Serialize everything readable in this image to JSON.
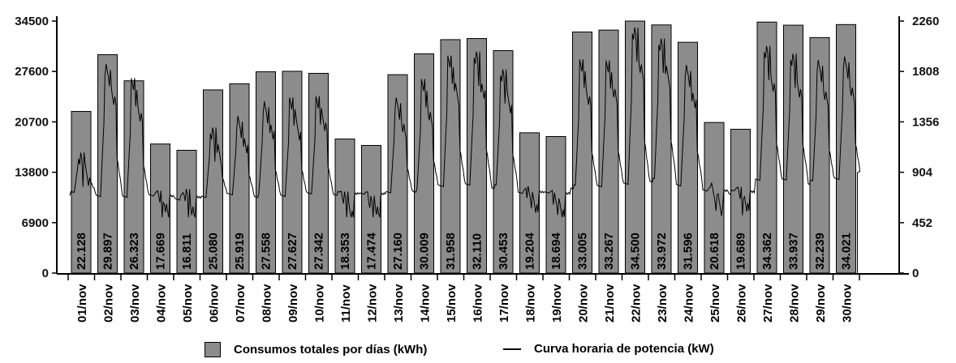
{
  "chart_data": {
    "type": "bar",
    "categories": [
      "01/nov",
      "02/nov",
      "03/nov",
      "04/nov",
      "05/nov",
      "06/nov",
      "07/nov",
      "08/nov",
      "09/nov",
      "10/nov",
      "11/nov",
      "12/nov",
      "13/nov",
      "14/nov",
      "15/nov",
      "16/nov",
      "17/nov",
      "18/nov",
      "19/nov",
      "20/nov",
      "21/nov",
      "22/nov",
      "23/nov",
      "24/nov",
      "25/nov",
      "26/nov",
      "27/nov",
      "28/nov",
      "29/nov",
      "30/nov"
    ],
    "series": [
      {
        "name": "Consumos totales por días (kWh)",
        "axis": "left",
        "kind": "bar",
        "color": "#8c8c8c",
        "values": [
          22128,
          29897,
          26323,
          17669,
          16811,
          25080,
          25919,
          27558,
          27627,
          27342,
          18353,
          17474,
          27160,
          30009,
          31958,
          32110,
          30453,
          19204,
          18694,
          33005,
          33267,
          34500,
          33972,
          31596,
          20618,
          19689,
          34362,
          33937,
          32239,
          34021
        ],
        "value_labels": [
          "22.128",
          "29.897",
          "26.323",
          "17.669",
          "16.811",
          "25.080",
          "25.919",
          "27.558",
          "27.627",
          "27.342",
          "18.353",
          "17.474",
          "27.160",
          "30.009",
          "31.958",
          "32.110",
          "30.453",
          "19.204",
          "18.694",
          "33.005",
          "33.267",
          "34.500",
          "33.972",
          "31.596",
          "20.618",
          "19.689",
          "34.362",
          "33.937",
          "32.239",
          "34.021"
        ]
      },
      {
        "name": "Curva horaria de potencia (kW)",
        "axis": "right",
        "kind": "line",
        "color": "#000000",
        "baseline": [
          720,
          710,
          690,
          690,
          680,
          690,
          700,
          700,
          700,
          710,
          720,
          720,
          720,
          750,
          790,
          790,
          780,
          730,
          720,
          780,
          790,
          800,
          840,
          800,
          740,
          730,
          850,
          840,
          820,
          860
        ],
        "daily_peak": [
          1130,
          1900,
          1750,
          770,
          760,
          1340,
          1420,
          1580,
          1590,
          1630,
          750,
          740,
          1600,
          1740,
          1980,
          1990,
          1860,
          790,
          760,
          1930,
          1950,
          2220,
          2150,
          1890,
          810,
          800,
          2040,
          2000,
          1920,
          1980
        ]
      }
    ],
    "left_axis": {
      "ticks": [
        "0",
        "6900",
        "13800",
        "20700",
        "27600",
        "34500"
      ],
      "ylim": [
        0,
        34500
      ]
    },
    "right_axis": {
      "ticks": [
        "0",
        "452",
        "904",
        "1356",
        "1808",
        "2260"
      ],
      "ylim": [
        0,
        2260
      ]
    },
    "legend": {
      "placement": "bottom"
    },
    "grid": false
  },
  "colors": {
    "bar_fill": "#8c8c8c",
    "line": "#000000",
    "axis": "#000000"
  }
}
